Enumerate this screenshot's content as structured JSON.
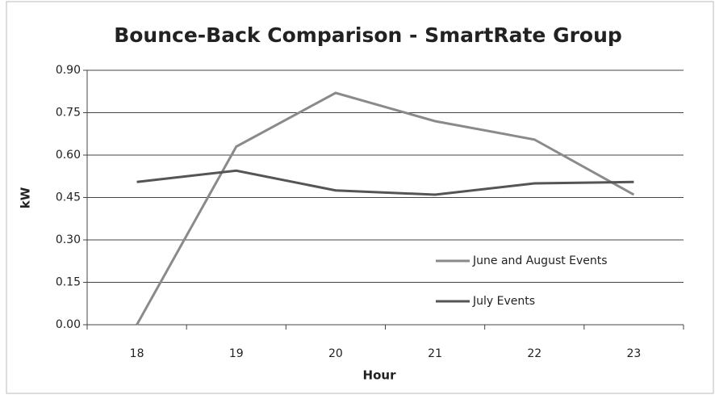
{
  "chart_data": {
    "type": "line",
    "title": "Bounce-Back Comparison - SmartRate Group",
    "xlabel": "Hour",
    "ylabel": "kW",
    "categories": [
      "18",
      "19",
      "20",
      "21",
      "22",
      "23"
    ],
    "series": [
      {
        "name": "June and August Events",
        "color": "#8a8a8a",
        "values": [
          0.0,
          0.63,
          0.82,
          0.72,
          0.655,
          0.46
        ]
      },
      {
        "name": "July Events",
        "color": "#555555",
        "values": [
          0.505,
          0.545,
          0.475,
          0.46,
          0.5,
          0.505
        ]
      }
    ],
    "ylim": [
      0,
      0.9
    ],
    "yticks": [
      {
        "value": 0,
        "label": "0.00"
      },
      {
        "value": 0.15,
        "label": "0.15"
      },
      {
        "value": 0.3,
        "label": "0.30"
      },
      {
        "value": 0.45,
        "label": "0.45"
      },
      {
        "value": 0.6,
        "label": "0.60"
      },
      {
        "value": 0.75,
        "label": "0.75"
      },
      {
        "value": 0.9,
        "label": "0.90"
      }
    ],
    "grid": true
  }
}
